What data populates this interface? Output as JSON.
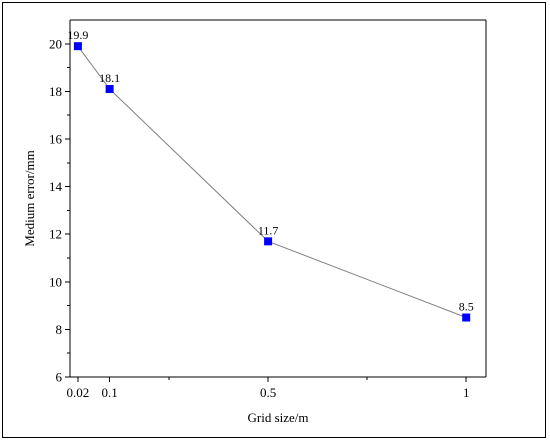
{
  "chart_data": {
    "type": "line",
    "title": "",
    "xlabel": "Grid size/m",
    "ylabel": "Medium error/mm",
    "x": [
      0.02,
      0.1,
      0.5,
      1
    ],
    "x_tick_labels": [
      "0.02",
      "0.1",
      "0.5",
      "1"
    ],
    "xlim": [
      0,
      1.05
    ],
    "y_ticks": [
      6,
      8,
      10,
      12,
      14,
      16,
      18,
      20
    ],
    "y_tick_labels": [
      "6",
      "8",
      "10",
      "12",
      "14",
      "16",
      "18",
      "20"
    ],
    "ylim": [
      6,
      21
    ],
    "series": [
      {
        "values": [
          19.9,
          18.1,
          11.7,
          8.5
        ],
        "data_labels": [
          "19.9",
          "18.1",
          "11.7",
          "8.5"
        ],
        "marker": "square",
        "marker_color": "#0000ff",
        "line_color": "#808080"
      }
    ],
    "grid": false,
    "legend": "none"
  }
}
